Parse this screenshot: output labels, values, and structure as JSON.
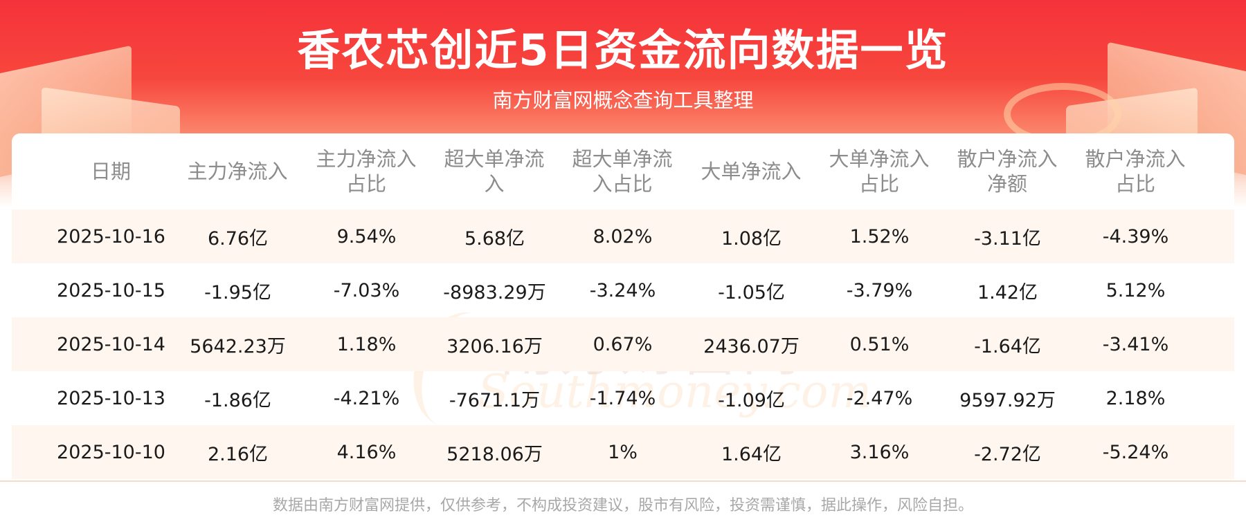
{
  "header": {
    "title": "香农芯创近5日资金流向数据一览",
    "subtitle": "南方财富网概念查询工具整理"
  },
  "table": {
    "columns": [
      "日期",
      "主力净流入",
      "主力净流入\n占比",
      "超大单净流\n入",
      "超大单净流\n入占比",
      "大单净流入",
      "大单净流入\n占比",
      "散户净流入\n净额",
      "散户净流入\n占比"
    ],
    "rows": [
      [
        "2025-10-16",
        "6.76亿",
        "9.54%",
        "5.68亿",
        "8.02%",
        "1.08亿",
        "1.52%",
        "-3.11亿",
        "-4.39%"
      ],
      [
        "2025-10-15",
        "-1.95亿",
        "-7.03%",
        "-8983.29万",
        "-3.24%",
        "-1.05亿",
        "-3.79%",
        "1.42亿",
        "5.12%"
      ],
      [
        "2025-10-14",
        "5642.23万",
        "1.18%",
        "3206.16万",
        "0.67%",
        "2436.07万",
        "0.51%",
        "-1.64亿",
        "-3.41%"
      ],
      [
        "2025-10-13",
        "-1.86亿",
        "-4.21%",
        "-7671.1万",
        "-1.74%",
        "-1.09亿",
        "-2.47%",
        "9597.92万",
        "2.18%"
      ],
      [
        "2025-10-10",
        "2.16亿",
        "4.16%",
        "5218.06万",
        "1%",
        "1.64亿",
        "3.16%",
        "-2.72亿",
        "-5.24%"
      ]
    ]
  },
  "watermark": {
    "cn": "南方财富网",
    "en": "Southmoney.com"
  },
  "footer": {
    "disclaimer": "数据由南方财富网提供，仅供参考，不构成投资建议，股市有风险，投资需谨慎，据此操作，风险自担。"
  }
}
